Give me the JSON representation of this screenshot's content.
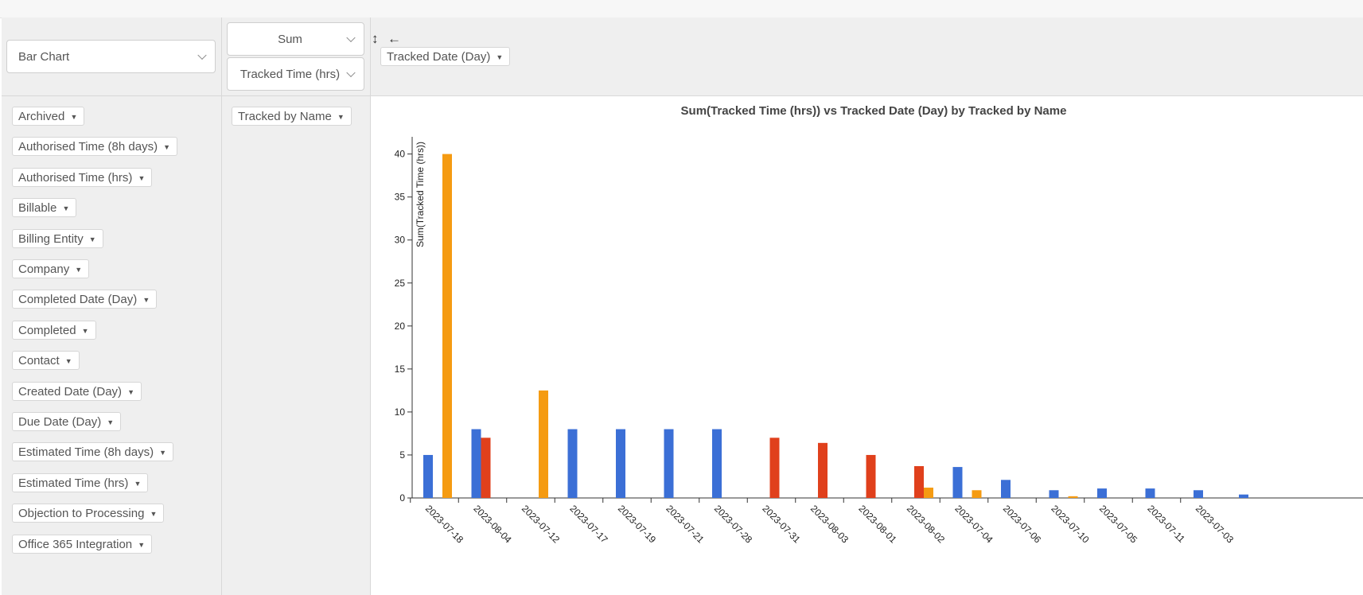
{
  "renderer": {
    "selected": "Bar Chart"
  },
  "aggregator": {
    "selected": "Sum",
    "value_field": "Tracked Time (hrs)"
  },
  "icons": {
    "swap": "↕",
    "back": "←",
    "swap_name": "vertical-arrows-icon",
    "back_name": "left-arrow-icon"
  },
  "column_attributes": [
    {
      "label": "Tracked Date (Day)"
    }
  ],
  "row_attributes": [
    {
      "label": "Tracked by Name"
    }
  ],
  "unused_attributes": [
    {
      "label": "Archived"
    },
    {
      "label": "Authorised Time (8h days)"
    },
    {
      "label": "Authorised Time (hrs)"
    },
    {
      "label": "Billable"
    },
    {
      "label": "Billing Entity"
    },
    {
      "label": "Company"
    },
    {
      "label": "Completed Date (Day)"
    },
    {
      "label": "Completed"
    },
    {
      "label": "Contact"
    },
    {
      "label": "Created Date (Day)"
    },
    {
      "label": "Due Date (Day)"
    },
    {
      "label": "Estimated Time (8h days)"
    },
    {
      "label": "Estimated Time (hrs)"
    },
    {
      "label": "Objection to Processing"
    },
    {
      "label": "Office 365 Integration"
    }
  ],
  "chart_data": {
    "type": "bar",
    "title": "Sum(Tracked Time (hrs)) vs Tracked Date (Day) by Tracked by Name",
    "ylabel": "Sum(Tracked Time (hrs))",
    "xlabel": "",
    "ylim": [
      0,
      42
    ],
    "yticks": [
      0,
      5,
      10,
      15,
      20,
      25,
      30,
      35,
      40
    ],
    "categories": [
      "2023-07-18",
      "2023-08-04",
      "2023-07-12",
      "2023-07-17",
      "2023-07-19",
      "2023-07-21",
      "2023-07-28",
      "2023-07-31",
      "2023-08-03",
      "2023-08-01",
      "2023-08-02",
      "2023-07-04",
      "2023-07-06",
      "2023-07-10",
      "2023-07-05",
      "2023-07-11",
      "2023-07-03"
    ],
    "series": [
      {
        "color": "#3b6fd6",
        "values": [
          5,
          8,
          0,
          8,
          8,
          8,
          8,
          0,
          0,
          0,
          0,
          3.6,
          2.1,
          0.9,
          1.1,
          1.1,
          0.9
        ]
      },
      {
        "color": "#e0401c",
        "values": [
          0,
          7,
          0,
          0,
          0,
          0,
          0,
          7,
          6.4,
          5,
          3.7,
          0,
          0,
          0,
          0,
          0,
          0
        ]
      },
      {
        "color": "#f59b12",
        "values": [
          40,
          0,
          12.5,
          0,
          0,
          0,
          0,
          0,
          0,
          0,
          1.2,
          0.9,
          0,
          0.2,
          0,
          0,
          0
        ]
      }
    ],
    "grid": false,
    "legend": "none"
  }
}
